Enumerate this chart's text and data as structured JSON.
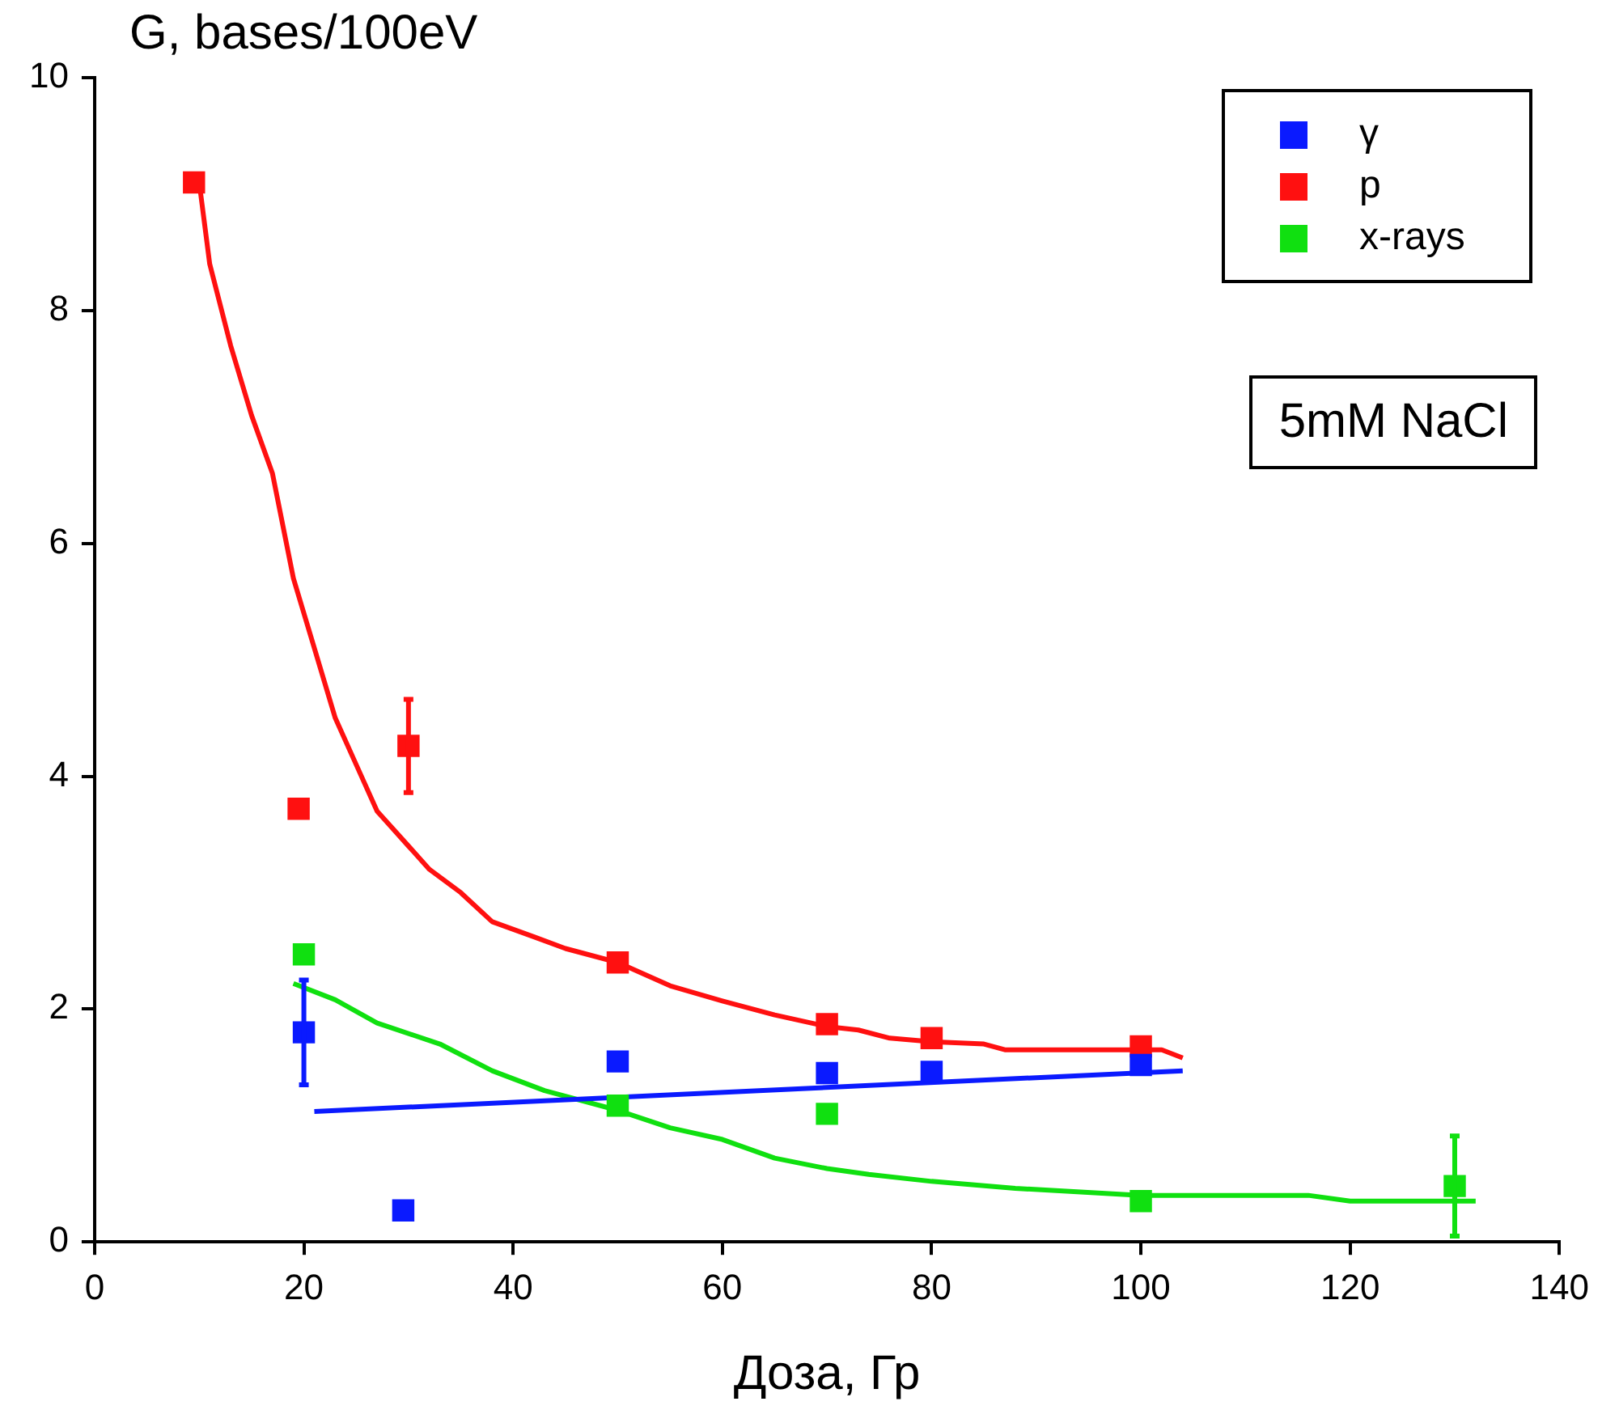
{
  "chart_data": {
    "type": "scatter",
    "xlabel": "Доза, Гр",
    "ylabel": "G, bases/100eV",
    "xlim": [
      0,
      140
    ],
    "xticks": [
      0,
      20,
      40,
      60,
      80,
      100,
      120,
      140
    ],
    "ylim": [
      0,
      10
    ],
    "yticks": [
      0,
      2,
      4,
      6,
      8,
      10
    ],
    "grid": false,
    "legend": "top right",
    "marker": "square",
    "annotations": [
      "5mM NaCl"
    ],
    "series": [
      {
        "name": "γ",
        "color": "#0a1aff",
        "x": [
          20,
          29.5,
          50,
          70,
          80,
          100
        ],
        "values": [
          1.8,
          0.27,
          1.55,
          1.45,
          1.46,
          1.52
        ],
        "errors": [
          0.45,
          null,
          null,
          null,
          null,
          null
        ]
      },
      {
        "name": "p",
        "color": "#ff1010",
        "x": [
          9.5,
          19.5,
          30,
          50,
          70,
          80,
          100
        ],
        "values": [
          9.1,
          3.72,
          4.26,
          2.4,
          1.87,
          1.75,
          1.68
        ],
        "errors": [
          null,
          null,
          0.4,
          null,
          null,
          null,
          null
        ]
      },
      {
        "name": "x-rays",
        "color": "#10e010",
        "x": [
          20,
          50,
          70,
          100,
          130
        ],
        "values": [
          2.47,
          1.17,
          1.1,
          0.35,
          0.48
        ],
        "errors": [
          null,
          null,
          null,
          null,
          0.43
        ]
      },
      {
        "type": "line",
        "marker": "none",
        "color": "#ff1010",
        "x": [
          10,
          11,
          13,
          15,
          17,
          19,
          21,
          23,
          25,
          27,
          30,
          32,
          35,
          38,
          42,
          45,
          50,
          55,
          60,
          65,
          70,
          73,
          76,
          80,
          85,
          87,
          95,
          102,
          104
        ],
        "values": [
          9.1,
          8.4,
          7.7,
          7.1,
          6.6,
          5.7,
          5.1,
          4.5,
          4.1,
          3.7,
          3.4,
          3.2,
          3.0,
          2.75,
          2.62,
          2.52,
          2.4,
          2.2,
          2.07,
          1.95,
          1.85,
          1.82,
          1.75,
          1.72,
          1.7,
          1.65,
          1.65,
          1.65,
          1.58
        ]
      },
      {
        "type": "line",
        "marker": "none",
        "color": "#0a1aff",
        "x": [
          21,
          104
        ],
        "values": [
          1.12,
          1.47
        ]
      },
      {
        "type": "line",
        "marker": "none",
        "color": "#10e010",
        "x": [
          19,
          23,
          27,
          33,
          38,
          43,
          50,
          55,
          60,
          65,
          70,
          74,
          80,
          88,
          100,
          116,
          120,
          132
        ],
        "values": [
          2.22,
          2.08,
          1.88,
          1.7,
          1.47,
          1.3,
          1.13,
          0.98,
          0.88,
          0.72,
          0.63,
          0.58,
          0.52,
          0.46,
          0.4,
          0.4,
          0.35,
          0.35
        ]
      }
    ]
  }
}
